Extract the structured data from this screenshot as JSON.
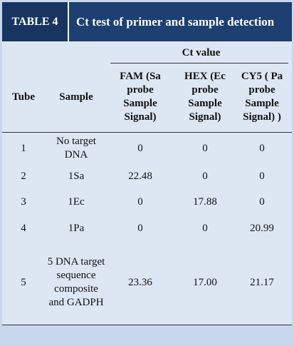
{
  "header": {
    "label": "TABLE 4",
    "title": "Ct test of primer and sample detection"
  },
  "table": {
    "group_header": "Ct value",
    "columns": [
      "Tube",
      "Sample",
      "FAM (Sa probe Sample Signal)",
      "HEX (Ec probe Sample Signal)",
      "CY5 ( Pa probe Sample Signal) )"
    ],
    "rows": [
      [
        "1",
        "No target DNA",
        "0",
        "0",
        "0"
      ],
      [
        "2",
        "1Sa",
        "22.48",
        "0",
        "0"
      ],
      [
        "3",
        "1Ec",
        "0",
        "17.88",
        "0"
      ],
      [
        "4",
        "1Pa",
        "0",
        "0",
        "20.99"
      ],
      [
        "5",
        "5 DNA target sequence composite and GADPH",
        "23.36",
        "17.00",
        "21.17"
      ]
    ]
  }
}
